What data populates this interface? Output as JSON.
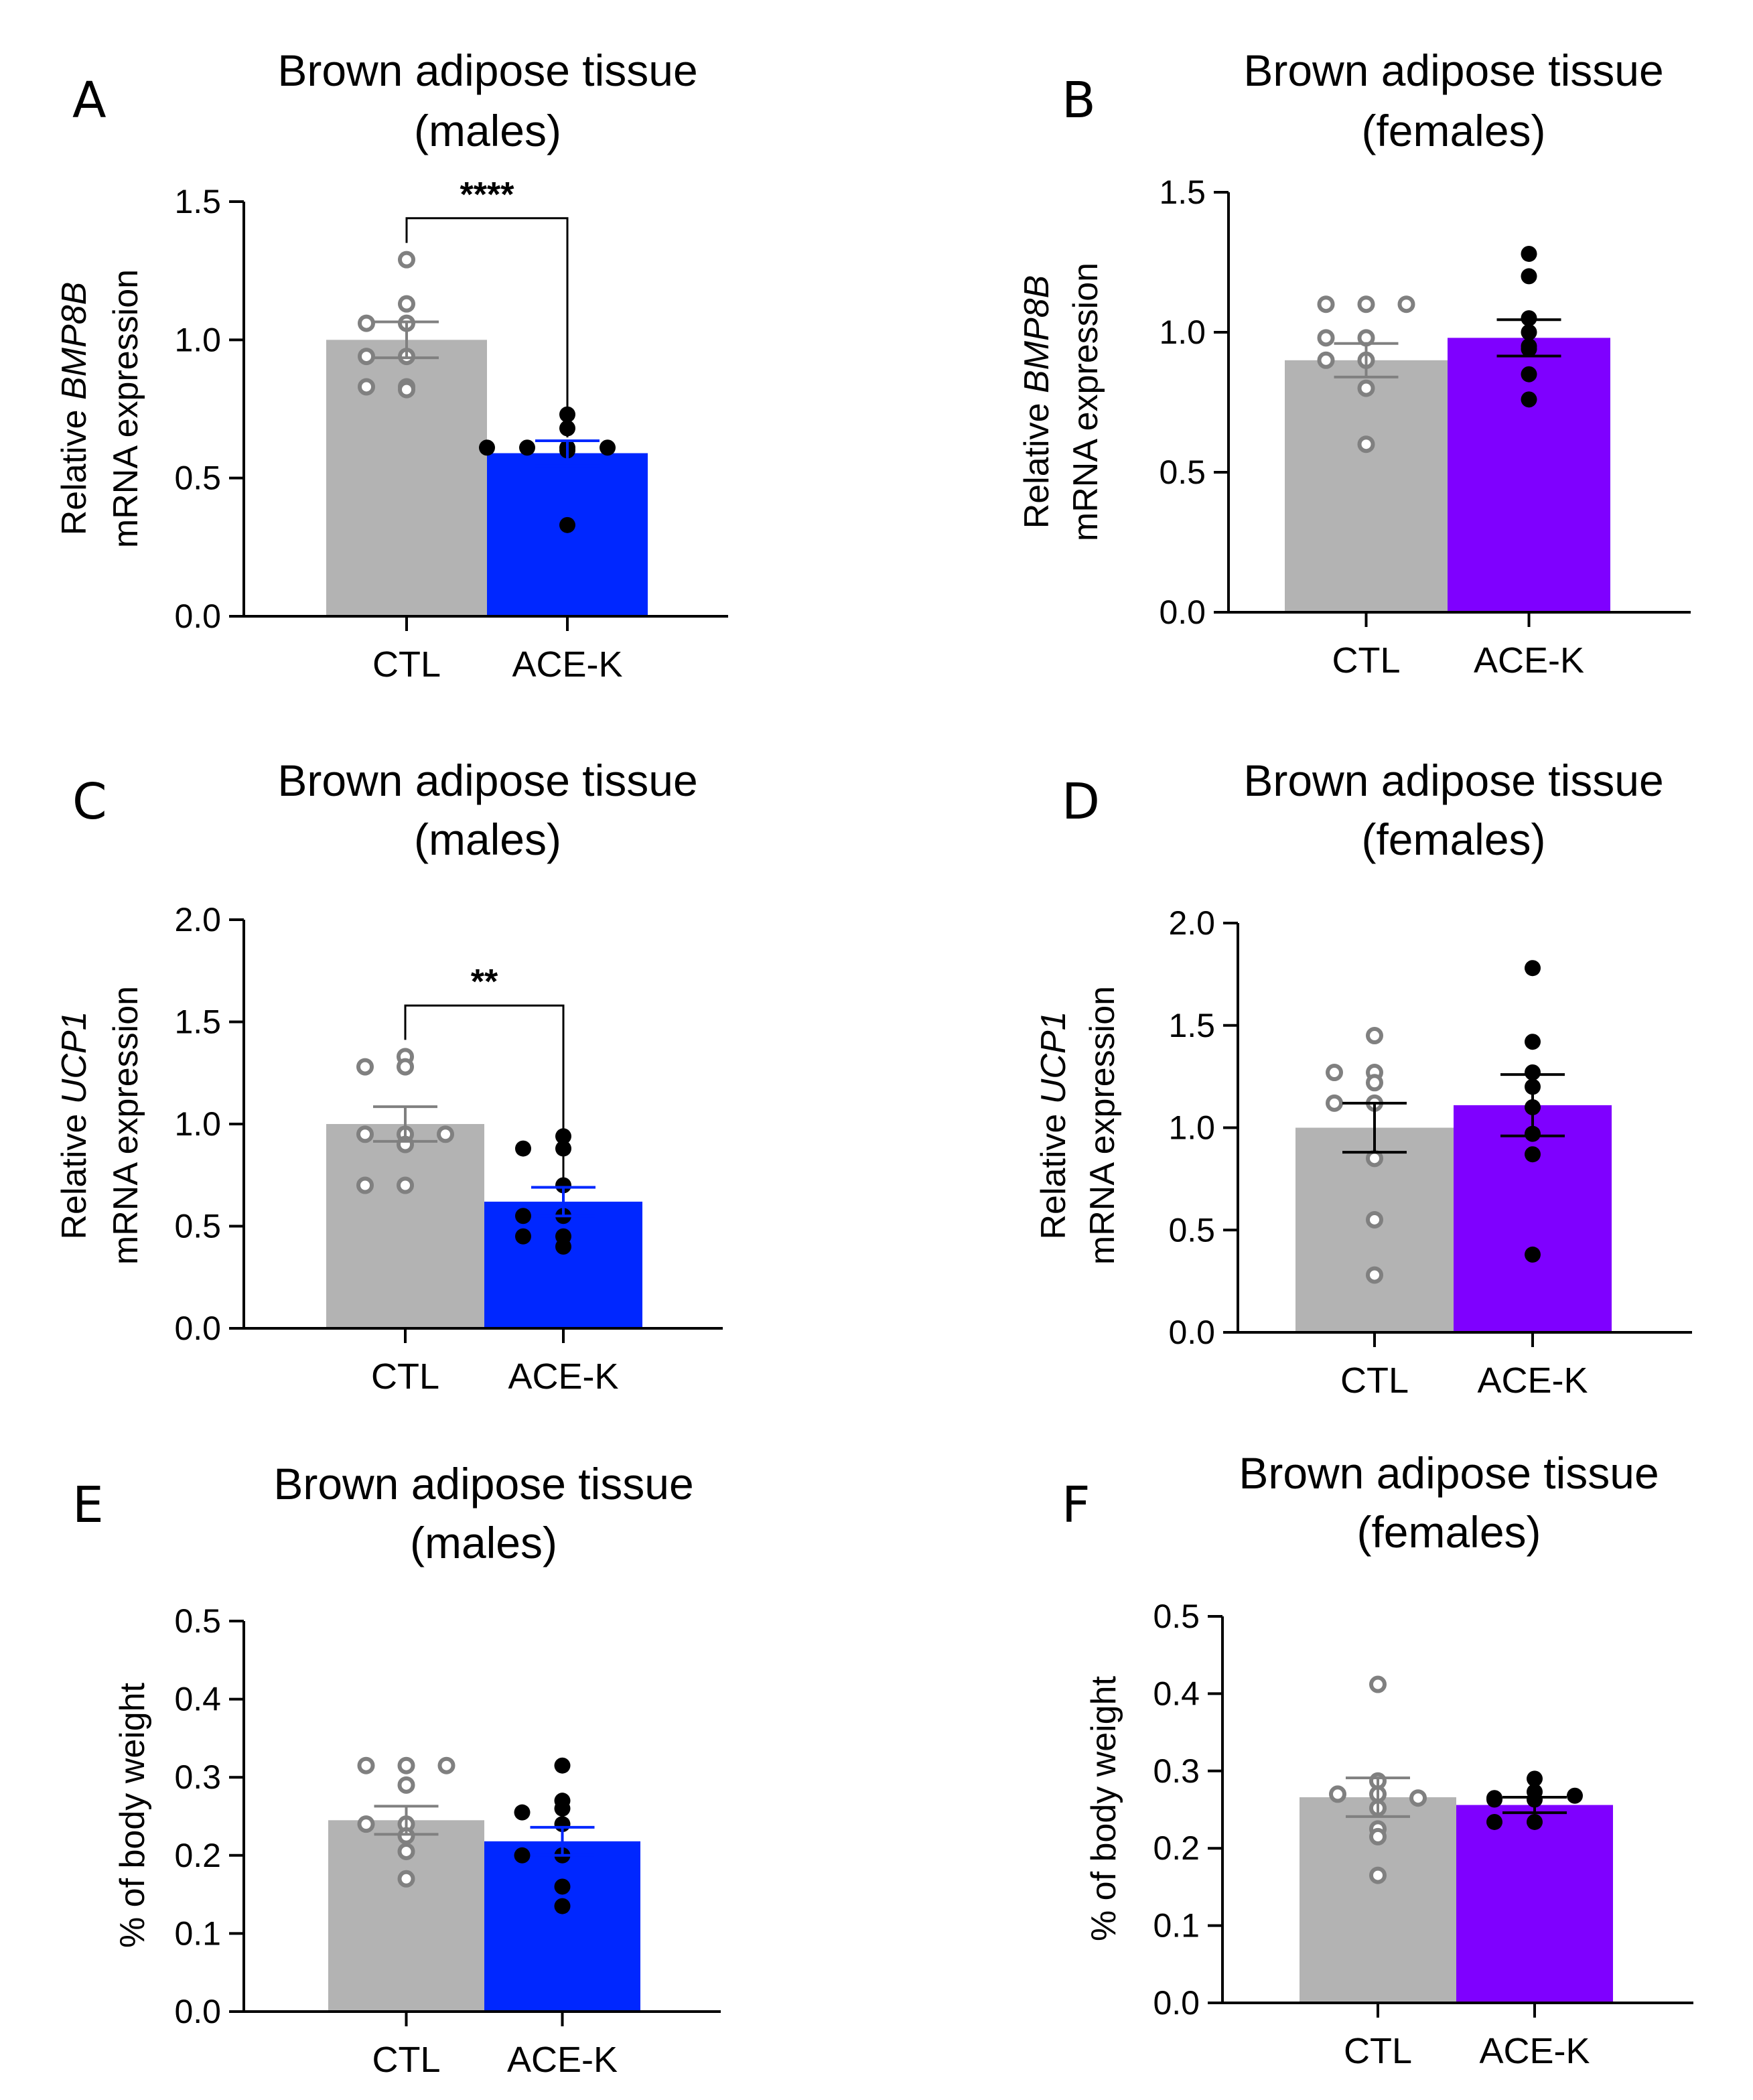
{
  "chart_data": [
    {
      "type": "bar",
      "panel": "A",
      "title": [
        "Brown adipose tissue",
        "(males)"
      ],
      "ylabel": [
        "Relative |BMP8B|",
        "mRNA expression"
      ],
      "categories": [
        "CTL",
        "ACE-K"
      ],
      "ylim": [
        0,
        1.5
      ],
      "yticks": [
        "0.0",
        "0.5",
        "1.0",
        "1.5"
      ],
      "bars": [
        {
          "category": "CTL",
          "mean": 1.0,
          "sem": 0.065,
          "color": "#b3b3b3",
          "error_color": "#808080",
          "point_style": "open",
          "point_color": "#808080",
          "points": [
            1.29,
            1.13,
            1.06,
            1.06,
            0.94,
            0.94,
            0.83,
            0.82,
            0.83
          ]
        },
        {
          "category": "ACE-K",
          "mean": 0.59,
          "sem": 0.045,
          "color": "#0027ff",
          "error_color": "#0027ff",
          "point_style": "filled",
          "point_color": "#000000",
          "points": [
            0.73,
            0.61,
            0.68,
            0.61,
            0.6,
            0.61,
            0.61,
            0.33
          ]
        }
      ],
      "significance": {
        "label": "****",
        "y": 1.44
      }
    },
    {
      "type": "bar",
      "panel": "B",
      "title": [
        "Brown adipose tissue",
        "(females)"
      ],
      "ylabel": [
        "Relative |BMP8B|",
        "mRNA expression"
      ],
      "categories": [
        "CTL",
        "ACE-K"
      ],
      "ylim": [
        0,
        1.5
      ],
      "yticks": [
        "0.0",
        "0.5",
        "1.0",
        "1.5"
      ],
      "bars": [
        {
          "category": "CTL",
          "mean": 0.9,
          "sem": 0.06,
          "color": "#b3b3b3",
          "error_color": "#808080",
          "point_style": "open",
          "point_color": "#808080",
          "points": [
            1.1,
            1.1,
            1.1,
            0.98,
            0.98,
            0.9,
            0.9,
            0.8,
            0.6
          ]
        },
        {
          "category": "ACE-K",
          "mean": 0.98,
          "sem": 0.065,
          "color": "#7f00ff",
          "error_color": "#000000",
          "point_style": "filled",
          "point_color": "#000000",
          "points": [
            1.28,
            1.2,
            1.05,
            1.0,
            0.94,
            0.95,
            0.85,
            0.76
          ]
        }
      ]
    },
    {
      "type": "bar",
      "panel": "C",
      "title": [
        "Brown adipose tissue",
        "(males)"
      ],
      "ylabel": [
        "Relative |UCP1|",
        "mRNA expression"
      ],
      "categories": [
        "CTL",
        "ACE-K"
      ],
      "ylim": [
        0,
        2.0
      ],
      "yticks": [
        "0.0",
        "0.5",
        "1.0",
        "1.5",
        "2.0"
      ],
      "bars": [
        {
          "category": "CTL",
          "mean": 1.0,
          "sem": 0.085,
          "color": "#b3b3b3",
          "error_color": "#808080",
          "point_style": "open",
          "point_color": "#808080",
          "points": [
            1.33,
            1.28,
            1.28,
            0.95,
            0.95,
            0.95,
            0.9,
            0.7,
            0.7
          ]
        },
        {
          "category": "ACE-K",
          "mean": 0.62,
          "sem": 0.07,
          "color": "#0027ff",
          "error_color": "#0027ff",
          "point_style": "filled",
          "point_color": "#000000",
          "points": [
            0.94,
            0.88,
            0.88,
            0.7,
            0.55,
            0.55,
            0.45,
            0.4,
            0.45
          ]
        }
      ],
      "significance": {
        "label": "**",
        "y": 1.58
      }
    },
    {
      "type": "bar",
      "panel": "D",
      "title": [
        "Brown adipose tissue",
        "(females)"
      ],
      "ylabel": [
        "Relative |UCP1|",
        "mRNA expression"
      ],
      "categories": [
        "CTL",
        "ACE-K"
      ],
      "ylim": [
        0,
        2.0
      ],
      "yticks": [
        "0.0",
        "0.5",
        "1.0",
        "1.5",
        "2.0"
      ],
      "bars": [
        {
          "category": "CTL",
          "mean": 1.0,
          "sem": 0.12,
          "color": "#b3b3b3",
          "error_color": "#000000",
          "point_style": "open",
          "point_color": "#808080",
          "points": [
            1.45,
            1.27,
            1.22,
            1.27,
            1.12,
            1.12,
            0.85,
            0.55,
            0.28
          ]
        },
        {
          "category": "ACE-K",
          "mean": 1.11,
          "sem": 0.15,
          "color": "#7f00ff",
          "error_color": "#000000",
          "point_style": "filled",
          "point_color": "#000000",
          "points": [
            1.78,
            1.42,
            1.27,
            1.2,
            1.1,
            0.97,
            0.87,
            0.38
          ]
        }
      ]
    },
    {
      "type": "bar",
      "panel": "E",
      "title": [
        "Brown adipose tissue",
        "(males)"
      ],
      "ylabel": [
        "% of body weight"
      ],
      "categories": [
        "CTL",
        "ACE-K"
      ],
      "ylim": [
        0,
        0.5
      ],
      "yticks": [
        "0.0",
        "0.1",
        "0.2",
        "0.3",
        "0.4",
        "0.5"
      ],
      "bars": [
        {
          "category": "CTL",
          "mean": 0.245,
          "sem": 0.018,
          "color": "#b3b3b3",
          "error_color": "#808080",
          "point_style": "open",
          "point_color": "#808080",
          "points": [
            0.315,
            0.315,
            0.315,
            0.29,
            0.24,
            0.24,
            0.225,
            0.205,
            0.17
          ]
        },
        {
          "category": "ACE-K",
          "mean": 0.218,
          "sem": 0.018,
          "color": "#0027ff",
          "error_color": "#0027ff",
          "point_style": "filled",
          "point_color": "#000000",
          "points": [
            0.315,
            0.27,
            0.26,
            0.255,
            0.24,
            0.2,
            0.2,
            0.16,
            0.135
          ]
        }
      ]
    },
    {
      "type": "bar",
      "panel": "F",
      "title": [
        "Brown adipose tissue",
        "(females)"
      ],
      "ylabel": [
        "% of body weight"
      ],
      "categories": [
        "CTL",
        "ACE-K"
      ],
      "ylim": [
        0,
        0.5
      ],
      "yticks": [
        "0.0",
        "0.1",
        "0.2",
        "0.3",
        "0.4",
        "0.5"
      ],
      "bars": [
        {
          "category": "CTL",
          "mean": 0.266,
          "sem": 0.025,
          "color": "#b3b3b3",
          "error_color": "#808080",
          "point_style": "open",
          "point_color": "#808080",
          "points": [
            0.412,
            0.287,
            0.27,
            0.27,
            0.265,
            0.252,
            0.225,
            0.215,
            0.165
          ]
        },
        {
          "category": "ACE-K",
          "mean": 0.256,
          "sem": 0.01,
          "color": "#7f00ff",
          "error_color": "#000000",
          "point_style": "filled",
          "point_color": "#000000",
          "points": [
            0.29,
            0.273,
            0.263,
            0.263,
            0.265,
            0.268,
            0.234,
            0.234
          ]
        }
      ]
    }
  ]
}
